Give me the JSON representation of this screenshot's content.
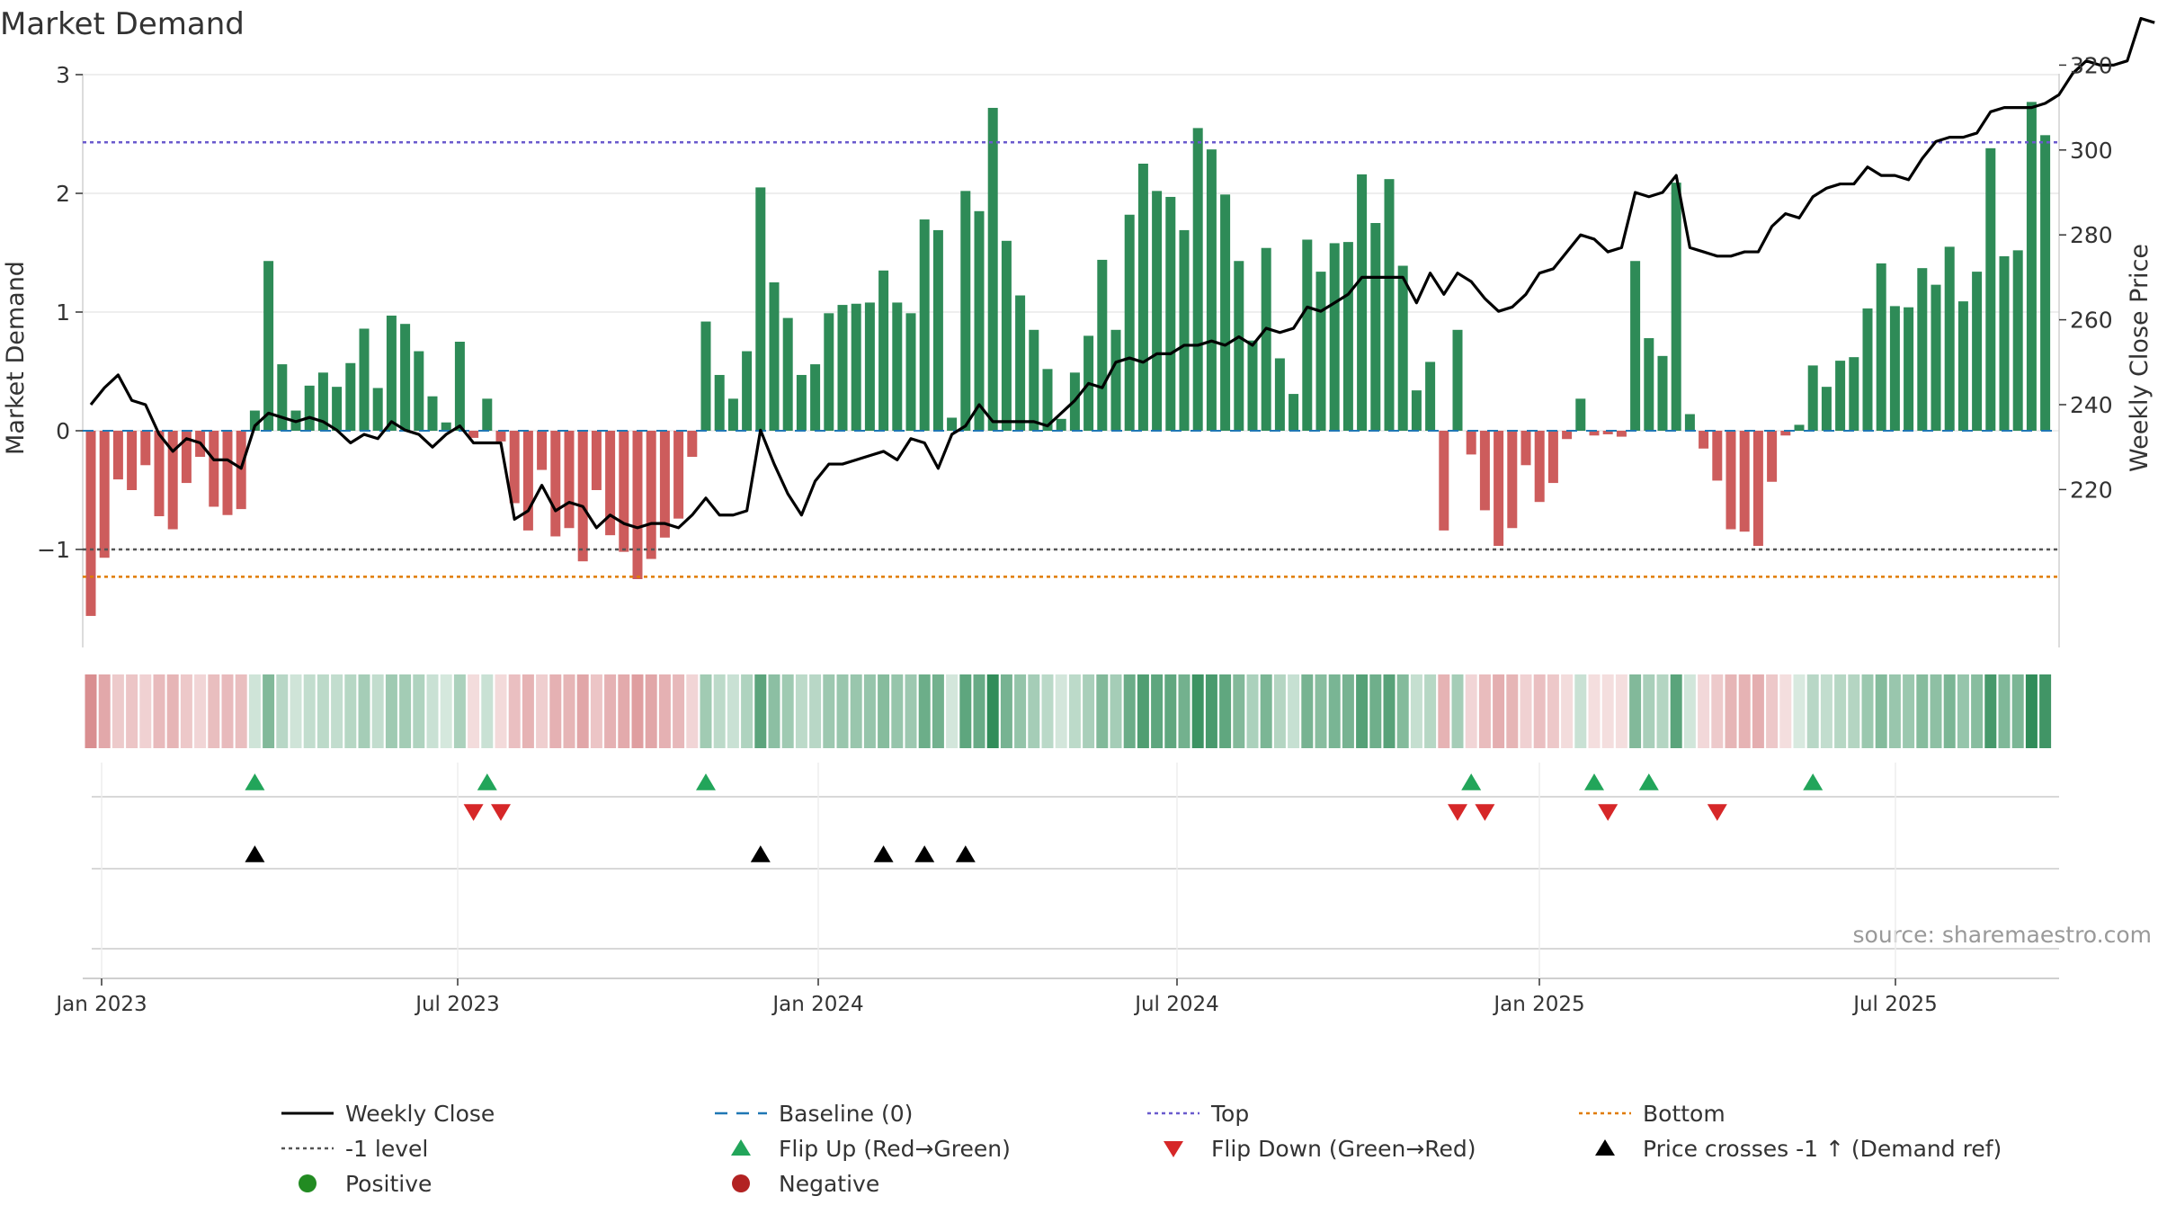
{
  "chart_data": {
    "type": "bar",
    "title": "Market Demand",
    "ylabel_left": "Market Demand",
    "ylabel_right": "Weekly Close Price",
    "source": "source: sharemaestro.com",
    "left_ylim": [
      -1.8,
      3
    ],
    "left_ticks": [
      "3",
      "2",
      "1",
      "0",
      "−1"
    ],
    "right_ylim": [
      200,
      335
    ],
    "right_ticks": [
      "320",
      "300",
      "280",
      "260",
      "240",
      "220"
    ],
    "x_ticks": [
      "Jan 2023",
      "Jul 2023",
      "Jan 2024",
      "Jul 2024",
      "Jan 2025",
      "Jul 2025"
    ],
    "top_level": 2.43,
    "bottom_level": -1.23,
    "demand_ref_level": -1,
    "grid": true,
    "demand": [
      -1.56,
      -1.07,
      -0.41,
      -0.5,
      -0.29,
      -0.72,
      -0.83,
      -0.44,
      -0.22,
      -0.64,
      -0.71,
      -0.66,
      0.17,
      1.43,
      0.56,
      0.17,
      0.38,
      0.49,
      0.37,
      0.57,
      0.86,
      0.36,
      0.97,
      0.9,
      0.67,
      0.29,
      0.07,
      0.75,
      -0.06,
      0.27,
      -0.09,
      -0.61,
      -0.84,
      -0.33,
      -0.89,
      -0.82,
      -1.1,
      -0.5,
      -0.88,
      -1.02,
      -1.25,
      -1.08,
      -0.9,
      -0.74,
      -0.22,
      0.92,
      0.47,
      0.27,
      0.67,
      2.05,
      1.25,
      0.95,
      0.47,
      0.56,
      0.99,
      1.06,
      1.07,
      1.08,
      1.35,
      1.08,
      0.99,
      1.78,
      1.69,
      0.11,
      2.02,
      1.85,
      2.72,
      1.6,
      1.14,
      0.85,
      0.52,
      0.1,
      0.49,
      0.8,
      1.44,
      0.85,
      1.82,
      2.25,
      2.02,
      1.97,
      1.69,
      2.55,
      2.37,
      1.99,
      1.43,
      0.76,
      1.54,
      0.61,
      0.31,
      1.61,
      1.34,
      1.58,
      1.59,
      2.16,
      1.75,
      2.12,
      1.39,
      0.34,
      0.58,
      -0.84,
      0.85,
      -0.2,
      -0.67,
      -0.97,
      -0.82,
      -0.29,
      -0.6,
      -0.44,
      -0.07,
      0.27,
      -0.04,
      -0.03,
      -0.05,
      1.43,
      0.78,
      0.63,
      2.09,
      0.14,
      -0.15,
      -0.42,
      -0.83,
      -0.85,
      -0.97,
      -0.43,
      -0.04,
      0.05,
      0.55,
      0.37,
      0.59,
      0.62,
      1.03,
      1.41,
      1.05,
      1.04,
      1.37,
      1.23,
      1.55,
      1.09,
      1.34,
      2.38,
      1.47,
      1.52,
      2.77,
      2.49
    ],
    "weekly_close": [
      240,
      244,
      247,
      241,
      240,
      233,
      229,
      232,
      231,
      227,
      227,
      225,
      235,
      238,
      237,
      236,
      237,
      236,
      234,
      231,
      233,
      232,
      236,
      234,
      233,
      230,
      233,
      235,
      231,
      231,
      231,
      213,
      215,
      221,
      215,
      217,
      216,
      211,
      214,
      212,
      211,
      212,
      212,
      211,
      214,
      218,
      214,
      214,
      215,
      234,
      226,
      219,
      214,
      222,
      226,
      226,
      227,
      228,
      229,
      227,
      232,
      231,
      225,
      233,
      235,
      240,
      236,
      236,
      236,
      236,
      235,
      238,
      241,
      245,
      244,
      250,
      251,
      250,
      252,
      252,
      254,
      254,
      255,
      254,
      256,
      254,
      258,
      257,
      258,
      263,
      262,
      264,
      266,
      270,
      270,
      270,
      270,
      264,
      271,
      266,
      271,
      269,
      265,
      262,
      263,
      266,
      271,
      272,
      276,
      280,
      279,
      276,
      277,
      290,
      289,
      290,
      294,
      277,
      276,
      275,
      275,
      276,
      276,
      282,
      285,
      284,
      289,
      291,
      292,
      292,
      296,
      294,
      294,
      293,
      298,
      302,
      303,
      303,
      304,
      309,
      310,
      310,
      310,
      311,
      313,
      318,
      321,
      320,
      320,
      321,
      331,
      330
    ],
    "heat_strip": {
      "description_values": "per-week colour intensity equals demand sign and magnitude",
      "positive_color": "#2e8b57",
      "negative_color": "#c44e52"
    },
    "flip_up_weeks": [
      12,
      29,
      45,
      101,
      110,
      114,
      126
    ],
    "flip_down_weeks": [
      28,
      30,
      100,
      102,
      111,
      119
    ],
    "price_cross_weeks": [
      12,
      49,
      58,
      61,
      64
    ],
    "legend": [
      {
        "label": "Weekly Close",
        "symbol": "solid-line",
        "color": "#000000"
      },
      {
        "label": "Baseline (0)",
        "symbol": "dashed-line",
        "color": "#1f77b4"
      },
      {
        "label": "Top",
        "symbol": "dotted-line",
        "color": "#6a5acd"
      },
      {
        "label": "Bottom",
        "symbol": "dotted-line",
        "color": "#e07b00"
      },
      {
        "label": "-1 level",
        "symbol": "dotted-line",
        "color": "#555555"
      },
      {
        "label": "Flip Up (Red→Green)",
        "symbol": "triangle-up",
        "color": "#22a55a"
      },
      {
        "label": "Flip Down (Green→Red)",
        "symbol": "triangle-down",
        "color": "#d62728"
      },
      {
        "label": "Price crosses -1 ↑ (Demand ref)",
        "symbol": "triangle-up",
        "color": "#000000"
      },
      {
        "label": "Positive",
        "symbol": "circle",
        "color": "#228b22"
      },
      {
        "label": "Negative",
        "symbol": "circle",
        "color": "#b22222"
      }
    ],
    "colors": {
      "positive_bar": "#2e8b57",
      "negative_bar": "#cd5c5c",
      "price_line": "#000000",
      "baseline": "#1f77b4",
      "top": "#6a5acd",
      "bottom": "#e07b00",
      "minus_one": "#555555",
      "flip_up": "#22a55a",
      "flip_down": "#d62728",
      "cross": "#000000"
    }
  }
}
